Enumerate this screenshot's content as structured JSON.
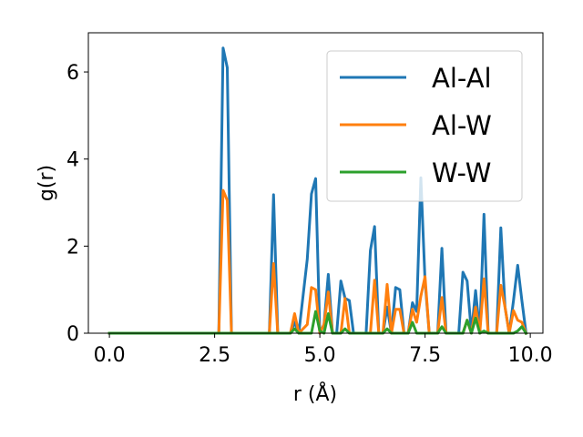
{
  "chart_data": {
    "type": "line",
    "xlabel": "r (Å)",
    "ylabel": "g(r)",
    "xlim": [
      -0.5,
      10.3
    ],
    "ylim": [
      0,
      6.9
    ],
    "xticks": [
      0.0,
      2.5,
      5.0,
      7.5,
      10.0
    ],
    "xtick_labels": [
      "0.0",
      "2.5",
      "5.0",
      "7.5",
      "10.0"
    ],
    "yticks": [
      0,
      2,
      4,
      6
    ],
    "ytick_labels": [
      "0",
      "2",
      "4",
      "6"
    ],
    "grid": false,
    "legend_position": "upper-right",
    "series": [
      {
        "name": "Al-Al",
        "color": "#1f77b4",
        "x": [
          0.0,
          2.6,
          2.7,
          2.8,
          2.9,
          3.8,
          3.9,
          4.0,
          4.1,
          4.3,
          4.4,
          4.5,
          4.7,
          4.8,
          4.9,
          5.0,
          5.1,
          5.2,
          5.3,
          5.4,
          5.5,
          5.6,
          5.7,
          5.8,
          6.1,
          6.2,
          6.3,
          6.4,
          6.5,
          6.6,
          6.7,
          6.8,
          6.9,
          7.0,
          7.1,
          7.2,
          7.3,
          7.4,
          7.5,
          7.6,
          7.7,
          7.8,
          7.9,
          8.0,
          8.3,
          8.4,
          8.5,
          8.6,
          8.7,
          8.8,
          8.9,
          9.0,
          9.1,
          9.2,
          9.3,
          9.4,
          9.5,
          9.6,
          9.7,
          9.8,
          9.9
        ],
        "y": [
          0.0,
          0.0,
          6.55,
          6.1,
          0.0,
          0.0,
          3.18,
          0.0,
          0.0,
          0.0,
          0.25,
          0.0,
          1.7,
          3.2,
          3.55,
          0.0,
          0.2,
          1.35,
          0.0,
          0.0,
          1.2,
          0.8,
          0.75,
          0.0,
          0.0,
          1.9,
          2.45,
          0.0,
          0.0,
          0.6,
          0.0,
          1.05,
          1.0,
          0.0,
          0.0,
          0.7,
          0.5,
          3.57,
          1.2,
          0.0,
          0.0,
          0.0,
          1.95,
          0.0,
          0.0,
          1.4,
          1.2,
          0.0,
          0.98,
          0.0,
          2.73,
          0.0,
          0.0,
          0.0,
          2.42,
          0.6,
          0.0,
          0.75,
          1.56,
          0.75,
          0.0
        ]
      },
      {
        "name": "Al-W",
        "color": "#ff7f0e",
        "x": [
          0.0,
          2.6,
          2.7,
          2.8,
          2.9,
          3.8,
          3.9,
          4.0,
          4.3,
          4.4,
          4.5,
          4.7,
          4.8,
          4.9,
          5.0,
          5.1,
          5.2,
          5.3,
          5.5,
          5.6,
          5.7,
          6.2,
          6.3,
          6.4,
          6.5,
          6.6,
          6.7,
          6.8,
          6.9,
          7.0,
          7.1,
          7.2,
          7.3,
          7.4,
          7.5,
          7.6,
          7.8,
          7.9,
          8.0,
          8.4,
          8.5,
          8.6,
          8.7,
          8.8,
          8.9,
          9.0,
          9.2,
          9.3,
          9.4,
          9.5,
          9.6,
          9.7,
          9.8,
          9.9
        ],
        "y": [
          0.0,
          0.0,
          3.28,
          3.05,
          0.0,
          0.0,
          1.6,
          0.0,
          0.0,
          0.45,
          0.0,
          0.2,
          1.05,
          1.0,
          0.0,
          0.2,
          0.95,
          0.0,
          0.0,
          0.8,
          0.0,
          0.0,
          1.22,
          0.0,
          0.0,
          1.12,
          0.0,
          0.55,
          0.55,
          0.0,
          0.0,
          0.55,
          0.25,
          0.85,
          1.3,
          0.0,
          0.0,
          0.82,
          0.0,
          0.0,
          0.3,
          0.0,
          0.6,
          0.0,
          1.25,
          0.0,
          0.0,
          1.1,
          0.6,
          0.0,
          0.52,
          0.3,
          0.25,
          0.0
        ]
      },
      {
        "name": "W-W",
        "color": "#2ca02c",
        "x": [
          0.0,
          4.3,
          4.4,
          4.5,
          4.8,
          4.9,
          5.0,
          5.1,
          5.2,
          5.3,
          5.5,
          5.6,
          5.7,
          6.5,
          6.6,
          6.7,
          7.1,
          7.2,
          7.3,
          7.8,
          7.9,
          8.0,
          8.4,
          8.5,
          8.6,
          8.7,
          8.8,
          8.9,
          9.0,
          9.6,
          9.7,
          9.8,
          9.9
        ],
        "y": [
          0.0,
          0.0,
          0.1,
          0.0,
          0.0,
          0.5,
          0.05,
          0.0,
          0.45,
          0.0,
          0.0,
          0.1,
          0.0,
          0.0,
          0.1,
          0.0,
          0.0,
          0.25,
          0.0,
          0.0,
          0.15,
          0.0,
          0.0,
          0.3,
          0.0,
          0.35,
          0.0,
          0.05,
          0.0,
          0.0,
          0.05,
          0.15,
          0.0
        ]
      }
    ]
  }
}
